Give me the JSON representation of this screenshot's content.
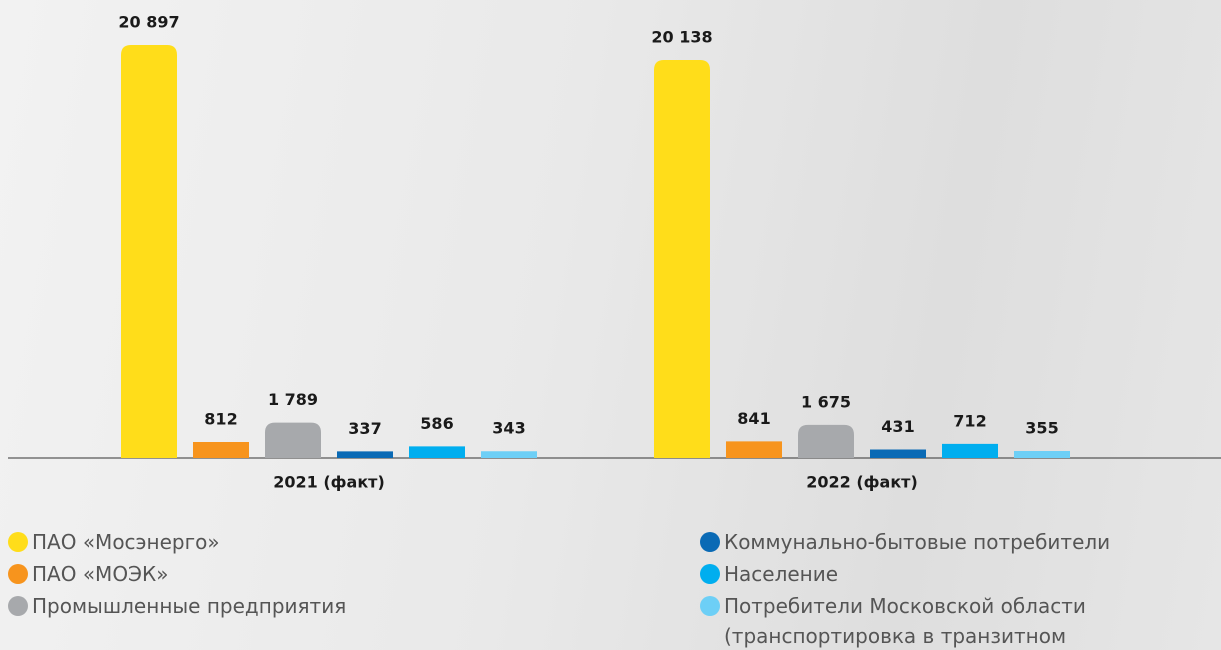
{
  "chart_data": {
    "type": "bar",
    "categories": [
      "2021 (факт)",
      "2022 (факт)"
    ],
    "series": [
      {
        "name": "ПАО «Мосэнерго»",
        "color": "#ffdd1a",
        "values": [
          20897,
          20138
        ],
        "value_labels": [
          "20 897",
          "20 138"
        ]
      },
      {
        "name": "ПАО «МОЭК»",
        "color": "#f7941d",
        "values": [
          812,
          841
        ]
      },
      {
        "name": "Промышленные предприятия",
        "color": "#a7a9ac",
        "values": [
          1789,
          1675
        ],
        "value_labels": [
          "1 789",
          "1 675"
        ]
      },
      {
        "name": "Коммунально-бытовые потребители",
        "color": "#0a6ab5",
        "values": [
          337,
          431
        ]
      },
      {
        "name": "Население",
        "color": "#00aeef",
        "values": [
          586,
          712
        ]
      },
      {
        "name": "Потребители Московской области (транспортировка в транзитном потоке)",
        "color": "#6dcff6",
        "values": [
          343,
          355
        ]
      }
    ]
  }
}
